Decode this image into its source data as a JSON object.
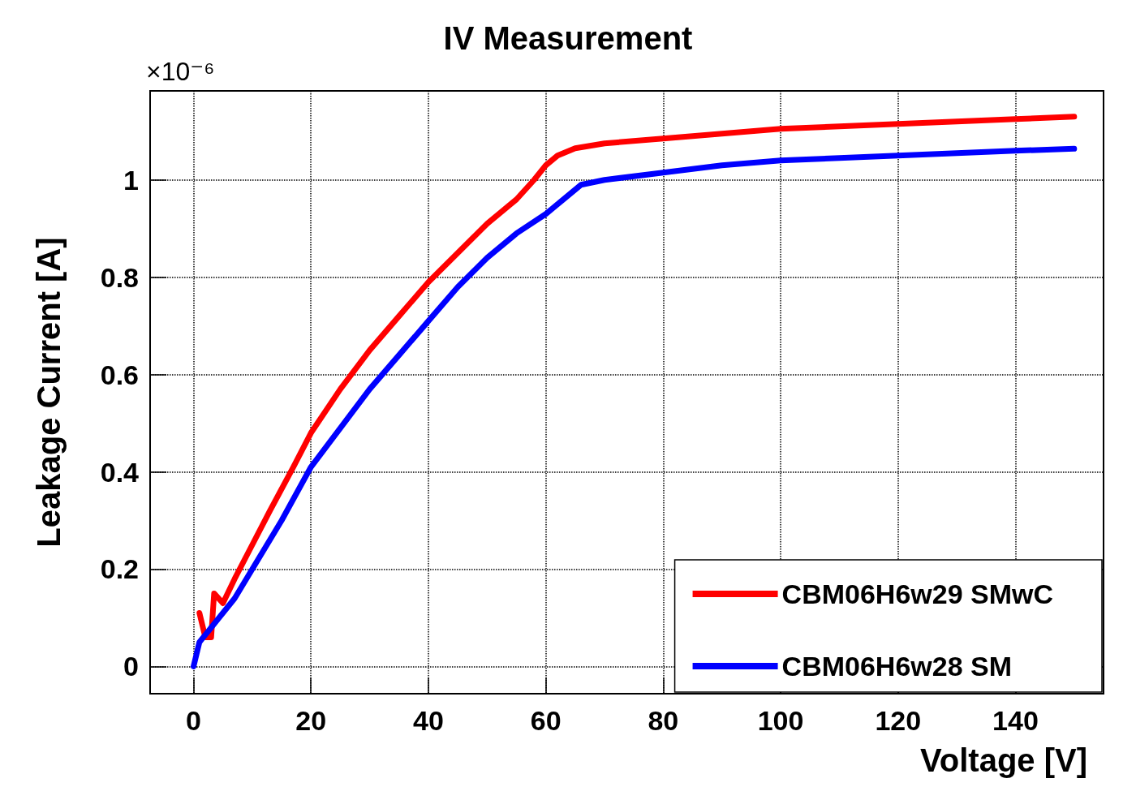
{
  "chart_data": {
    "type": "line",
    "title": "IV Measurement",
    "xlabel": "Voltage [V]",
    "ylabel": "Leakage Current [A]",
    "annotations": [
      "×10⁻⁶"
    ],
    "xlim": [
      -7.4,
      155
    ],
    "xticks": [
      0,
      20,
      40,
      60,
      80,
      100,
      120,
      140
    ],
    "ylim": [
      -0.056,
      1.183
    ],
    "yticks": [
      0,
      0.2,
      0.4,
      0.6,
      0.8,
      1
    ],
    "grid": true,
    "legend": "bottom right",
    "marker": "none",
    "line_style": "solid",
    "series": [
      {
        "name": "CBM06H6w29 SMwC",
        "color": "#ff0000",
        "x": [
          1,
          2,
          3,
          3.5,
          5,
          7,
          10,
          13,
          17,
          20,
          25,
          30,
          35,
          40,
          45,
          50,
          55,
          58,
          60,
          62,
          65,
          70,
          80,
          90,
          100,
          110,
          120,
          130,
          140,
          150
        ],
        "values": [
          0.11,
          0.06,
          0.06,
          0.15,
          0.13,
          0.18,
          0.25,
          0.32,
          0.41,
          0.48,
          0.57,
          0.65,
          0.72,
          0.79,
          0.85,
          0.91,
          0.96,
          1.0,
          1.03,
          1.05,
          1.065,
          1.075,
          1.085,
          1.095,
          1.105,
          1.11,
          1.115,
          1.12,
          1.125,
          1.13
        ]
      },
      {
        "name": "CBM06H6w28 SM",
        "color": "#0000ff",
        "x": [
          0,
          1,
          3,
          5,
          7,
          10,
          15,
          20,
          25,
          30,
          35,
          40,
          45,
          50,
          55,
          60,
          63,
          66,
          70,
          80,
          90,
          100,
          110,
          120,
          130,
          140,
          150
        ],
        "values": [
          0,
          0.05,
          0.08,
          0.11,
          0.14,
          0.2,
          0.3,
          0.41,
          0.49,
          0.57,
          0.64,
          0.71,
          0.78,
          0.84,
          0.89,
          0.93,
          0.96,
          0.99,
          1.0,
          1.015,
          1.03,
          1.04,
          1.045,
          1.05,
          1.055,
          1.06,
          1.064
        ]
      }
    ]
  }
}
